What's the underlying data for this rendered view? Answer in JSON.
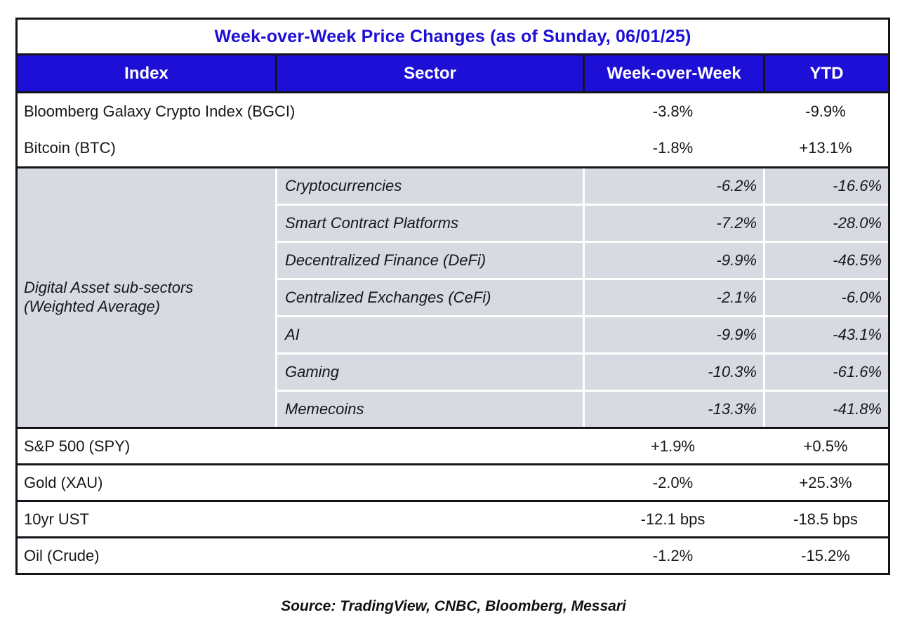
{
  "chart_data": {
    "type": "table",
    "title": "Week-over-Week Price Changes (as of Sunday, 06/01/25)",
    "columns": [
      "Index",
      "Sector",
      "Week-over-Week",
      "YTD"
    ],
    "index_rows_top": [
      {
        "index": "Bloomberg Galaxy Crypto Index (BGCI)",
        "wow": "-3.8%",
        "ytd": "-9.9%"
      },
      {
        "index": "Bitcoin (BTC)",
        "wow": "-1.8%",
        "ytd": "+13.1%"
      }
    ],
    "subsector_group": {
      "index_label": "Digital Asset sub-sectors (Weighted Average)",
      "label_line1": "Digital Asset sub-sectors",
      "label_line2": "(Weighted Average)",
      "rows": [
        {
          "sector": "Cryptocurrencies",
          "wow": "-6.2%",
          "ytd": "-16.6%"
        },
        {
          "sector": "Smart Contract Platforms",
          "wow": "-7.2%",
          "ytd": "-28.0%"
        },
        {
          "sector": "Decentralized Finance (DeFi)",
          "wow": "-9.9%",
          "ytd": "-46.5%"
        },
        {
          "sector": "Centralized Exchanges (CeFi)",
          "wow": "-2.1%",
          "ytd": "-6.0%"
        },
        {
          "sector": "AI",
          "wow": "-9.9%",
          "ytd": "-43.1%"
        },
        {
          "sector": "Gaming",
          "wow": "-10.3%",
          "ytd": "-61.6%"
        },
        {
          "sector": "Memecoins",
          "wow": "-13.3%",
          "ytd": "-41.8%"
        }
      ]
    },
    "index_rows_bottom": [
      {
        "index": "S&P 500 (SPY)",
        "wow": "+1.9%",
        "ytd": "+0.5%"
      },
      {
        "index": "Gold (XAU)",
        "wow": "-2.0%",
        "ytd": "+25.3%"
      },
      {
        "index": "10yr UST",
        "wow": "-12.1 bps",
        "ytd": "-18.5 bps"
      },
      {
        "index": "Oil (Crude)",
        "wow": "-1.2%",
        "ytd": "-15.2%"
      }
    ]
  },
  "footer": {
    "source": "Source: TradingView, CNBC, Bloomberg, Messari"
  },
  "colors": {
    "accent_blue": "#1E0FD6",
    "subsector_bg": "#D7DAE0",
    "border_black": "#14141A",
    "header_text": "#FFFFFF"
  }
}
